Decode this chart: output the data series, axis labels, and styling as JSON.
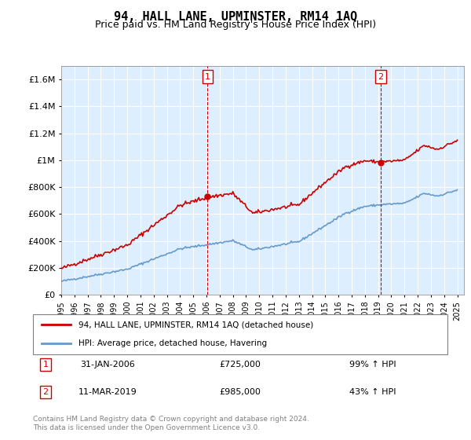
{
  "title": "94, HALL LANE, UPMINSTER, RM14 1AQ",
  "subtitle": "Price paid vs. HM Land Registry's House Price Index (HPI)",
  "legend_line1": "94, HALL LANE, UPMINSTER, RM14 1AQ (detached house)",
  "legend_line2": "HPI: Average price, detached house, Havering",
  "sale1_label": "1",
  "sale1_date": "31-JAN-2006",
  "sale1_price": 725000,
  "sale1_pct": "99% ↑ HPI",
  "sale2_label": "2",
  "sale2_date": "11-MAR-2019",
  "sale2_price": 985000,
  "sale2_pct": "43% ↑ HPI",
  "footer": "Contains HM Land Registry data © Crown copyright and database right 2024.\nThis data is licensed under the Open Government Licence v3.0.",
  "red_color": "#cc0000",
  "blue_color": "#6699cc",
  "bg_color": "#ddeeff",
  "ylim": [
    0,
    1700000
  ],
  "yticks": [
    0,
    200000,
    400000,
    600000,
    800000,
    1000000,
    1200000,
    1400000,
    1600000
  ],
  "ytick_labels": [
    "£0",
    "£200K",
    "£400K",
    "£600K",
    "£800K",
    "£1M",
    "£1.2M",
    "£1.4M",
    "£1.6M"
  ]
}
